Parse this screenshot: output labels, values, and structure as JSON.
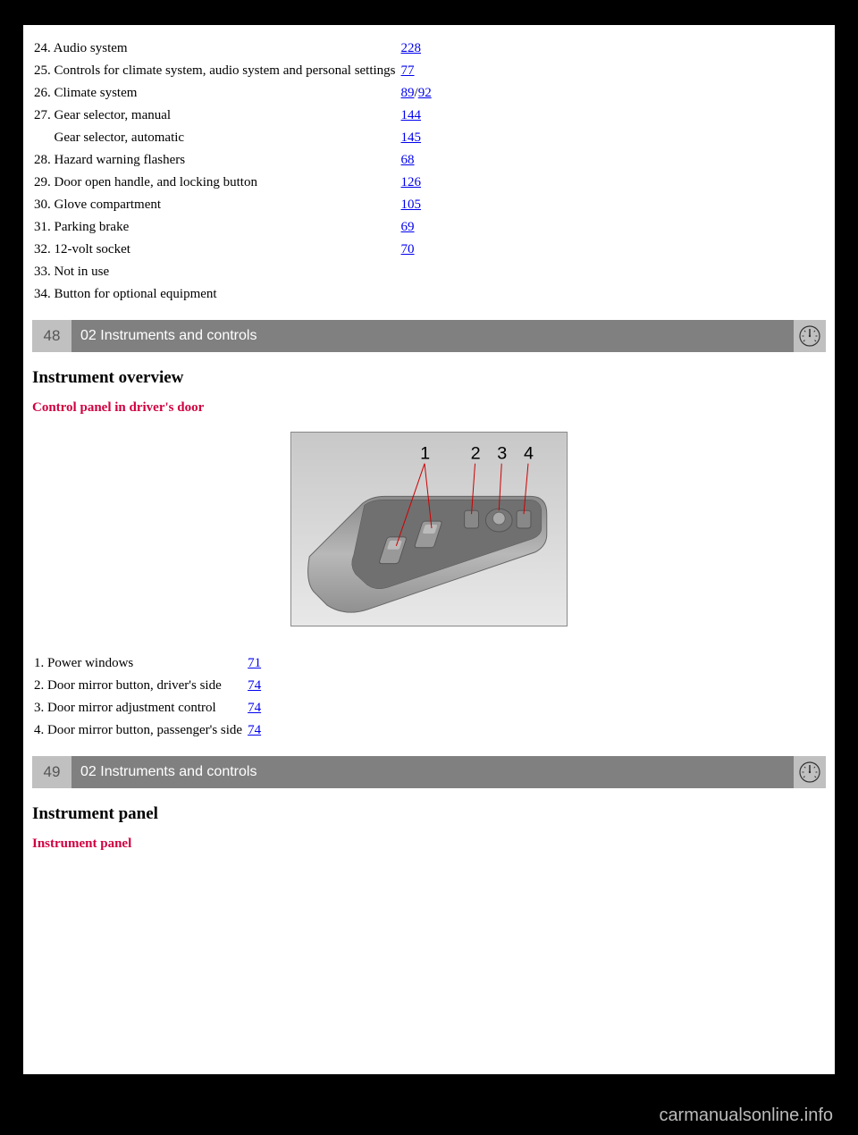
{
  "top_index": [
    {
      "num": "24.",
      "label": "Audio system",
      "pages": [
        "228"
      ]
    },
    {
      "num": "25.",
      "label": "Controls for climate system, audio system and personal settings",
      "pages": [
        "77"
      ]
    },
    {
      "num": "26.",
      "label": "Climate system",
      "pages": [
        "89",
        "92"
      ]
    },
    {
      "num": "27.",
      "label": "Gear selector, manual",
      "pages": [
        "144"
      ]
    },
    {
      "num": "",
      "label": "Gear selector, automatic",
      "pages": [
        "145"
      ],
      "indent": true
    },
    {
      "num": "28.",
      "label": "Hazard warning flashers",
      "pages": [
        "68"
      ]
    },
    {
      "num": "29.",
      "label": "Door open handle, and locking button",
      "pages": [
        "126"
      ]
    },
    {
      "num": "30.",
      "label": "Glove compartment",
      "pages": [
        "105"
      ]
    },
    {
      "num": "31.",
      "label": "Parking brake",
      "pages": [
        "69"
      ]
    },
    {
      "num": "32.",
      "label": "12-volt socket",
      "pages": [
        "70"
      ]
    },
    {
      "num": "33.",
      "label": "Not in use",
      "pages": []
    },
    {
      "num": "34.",
      "label": "Button for optional equipment",
      "pages": []
    }
  ],
  "section48": {
    "page": "48",
    "title": "02 Instruments and controls"
  },
  "heading1": "Instrument overview",
  "subheading1": "Control panel in driver's door",
  "callouts": [
    "1",
    "2",
    "3",
    "4"
  ],
  "bottom_index": [
    {
      "num": "1.",
      "label": "Power windows",
      "pages": [
        "71"
      ]
    },
    {
      "num": "2.",
      "label": "Door mirror button, driver's side",
      "pages": [
        "74"
      ]
    },
    {
      "num": "3.",
      "label": "Door mirror adjustment control",
      "pages": [
        "74"
      ]
    },
    {
      "num": "4.",
      "label": "Door mirror button, passenger's side",
      "pages": [
        "74"
      ]
    }
  ],
  "section49": {
    "page": "49",
    "title": "02 Instruments and controls"
  },
  "heading2": "Instrument panel",
  "subheading2": "Instrument panel",
  "footer": "carmanualsonline.info"
}
